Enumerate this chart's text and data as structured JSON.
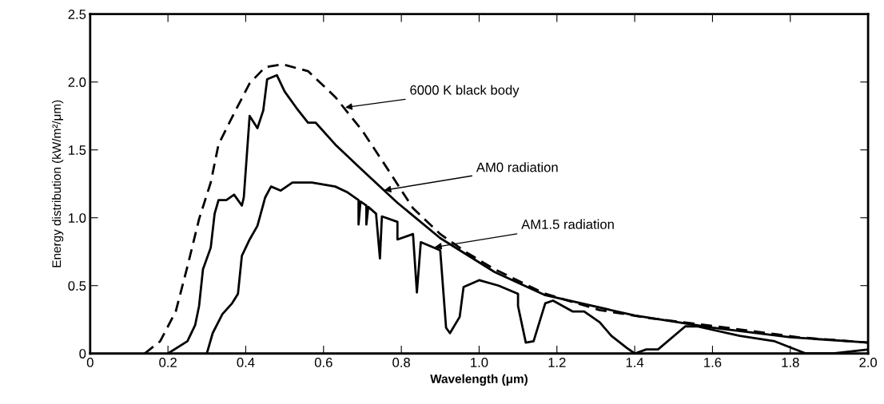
{
  "chart_data": {
    "type": "line",
    "xlabel": "Wavelength (μm)",
    "ylabel": "Energy distribution (kW/m²/μm)",
    "xlim": [
      0,
      2.0
    ],
    "ylim": [
      0,
      2.5
    ],
    "xticks": [
      0,
      {
        "value": 0.2,
        "label": "0.2"
      },
      {
        "value": 0.4,
        "label": "0.4"
      },
      {
        "value": 0.6,
        "label": "0.6"
      },
      {
        "value": 0.8,
        "label": "0.8"
      },
      {
        "value": 1.0,
        "label": "1.0"
      },
      {
        "value": 1.2,
        "label": "1.2"
      },
      {
        "value": 1.4,
        "label": "1.4"
      },
      {
        "value": 1.6,
        "label": "1.6"
      },
      {
        "value": 1.8,
        "label": "1.8"
      },
      {
        "value": 2.0,
        "label": "2.0"
      }
    ],
    "yticks": [
      0,
      0.5,
      {
        "value": 1.0,
        "label": "1.0"
      },
      1.5,
      {
        "value": 2.0,
        "label": "2.0"
      },
      2.5
    ],
    "grid": false,
    "legend": false,
    "marker": "none",
    "series": [
      {
        "color": "#000000",
        "line_style": "dashed",
        "x": [
          0.14,
          0.18,
          0.22,
          0.25,
          0.28,
          0.31,
          0.33,
          0.37,
          0.41,
          0.45,
          0.495,
          0.56,
          0.63,
          0.7,
          0.76,
          0.83,
          0.9,
          0.97,
          1.04,
          1.17,
          1.31,
          1.44,
          1.61,
          1.82,
          2.0
        ],
        "values": [
          0,
          0.09,
          0.31,
          0.64,
          0.99,
          1.26,
          1.54,
          1.77,
          1.99,
          2.11,
          2.13,
          2.08,
          1.89,
          1.64,
          1.38,
          1.07,
          0.88,
          0.74,
          0.62,
          0.44,
          0.32,
          0.26,
          0.2,
          0.12,
          0.08
        ]
      },
      {
        "color": "#000000",
        "line_style": "solid",
        "x": [
          0.2,
          0.25,
          0.27,
          0.28,
          0.29,
          0.31,
          0.32,
          0.33,
          0.35,
          0.37,
          0.39,
          0.395,
          0.41,
          0.43,
          0.445,
          0.455,
          0.48,
          0.5,
          0.53,
          0.56,
          0.58,
          0.63,
          0.7,
          0.79,
          0.9,
          1.04,
          1.17,
          1.4,
          1.6,
          1.8,
          2.0
        ],
        "values": [
          0,
          0.09,
          0.21,
          0.35,
          0.62,
          0.78,
          1.03,
          1.13,
          1.13,
          1.17,
          1.09,
          1.15,
          1.75,
          1.66,
          1.79,
          2.02,
          2.05,
          1.93,
          1.81,
          1.7,
          1.7,
          1.54,
          1.35,
          1.11,
          0.85,
          0.6,
          0.43,
          0.28,
          0.19,
          0.12,
          0.08
        ]
      },
      {
        "color": "#000000",
        "line_style": "solid",
        "x": [
          0.3,
          0.315,
          0.34,
          0.365,
          0.38,
          0.39,
          0.41,
          0.43,
          0.45,
          0.465,
          0.49,
          0.52,
          0.57,
          0.63,
          0.66,
          0.69,
          0.69,
          0.695,
          0.71,
          0.71,
          0.715,
          0.735,
          0.745,
          0.75,
          0.79,
          0.79,
          0.83,
          0.84,
          0.85,
          0.9,
          0.915,
          0.925,
          0.95,
          0.96,
          1.0,
          1.05,
          1.1,
          1.1,
          1.12,
          1.14,
          1.17,
          1.19,
          1.24,
          1.27,
          1.31,
          1.34,
          1.38,
          1.4,
          1.43,
          1.46,
          1.53,
          1.56,
          1.67,
          1.76,
          1.84,
          1.91,
          2.0
        ],
        "values": [
          0,
          0.15,
          0.29,
          0.37,
          0.44,
          0.72,
          0.84,
          0.94,
          1.15,
          1.23,
          1.2,
          1.26,
          1.26,
          1.23,
          1.19,
          1.13,
          0.95,
          1.12,
          1.09,
          0.95,
          1.08,
          1.03,
          0.7,
          1.01,
          0.97,
          0.84,
          0.88,
          0.45,
          0.82,
          0.76,
          0.19,
          0.15,
          0.27,
          0.49,
          0.54,
          0.5,
          0.44,
          0.35,
          0.08,
          0.09,
          0.37,
          0.39,
          0.31,
          0.31,
          0.23,
          0.13,
          0.04,
          0,
          0.03,
          0.03,
          0.2,
          0.2,
          0.13,
          0.09,
          0,
          0,
          0.03
        ]
      }
    ],
    "annotations": [
      {
        "text": "6000 K black body",
        "x": 0.65,
        "y": 1.81
      },
      {
        "text": "AM0 radiation",
        "x": 0.75,
        "y": 1.2
      },
      {
        "text": "AM1.5 radiation",
        "x": 0.88,
        "y": 0.78
      }
    ]
  }
}
